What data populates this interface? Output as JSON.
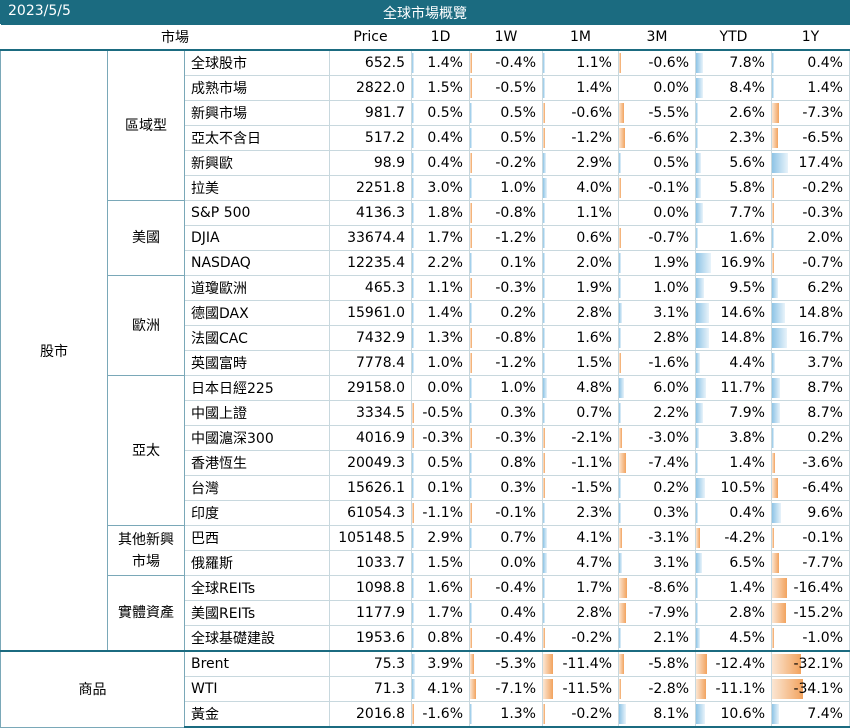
{
  "header": {
    "date": "2023/5/5",
    "title": "全球市場概覽"
  },
  "columns": {
    "market": "市場",
    "price": "Price",
    "periods": [
      "1D",
      "1W",
      "1M",
      "3M",
      "YTD",
      "1Y"
    ]
  },
  "colors": {
    "header_bg": "#1b6b80",
    "positive_bar": "#8ec4e6",
    "negative_bar": "#f2a35e"
  },
  "groups": [
    {
      "category": "股市",
      "subgroups": [
        {
          "name": "區域型",
          "rows": [
            {
              "name": "全球股市",
              "price": "652.5",
              "values": [
                "1.4%",
                "-0.4%",
                "1.1%",
                "-0.6%",
                "7.8%",
                "0.4%"
              ]
            },
            {
              "name": "成熟市場",
              "price": "2822.0",
              "values": [
                "1.5%",
                "-0.5%",
                "1.4%",
                "0.0%",
                "8.4%",
                "1.4%"
              ]
            },
            {
              "name": "新興市場",
              "price": "981.7",
              "values": [
                "0.5%",
                "0.5%",
                "-0.6%",
                "-5.5%",
                "2.6%",
                "-7.3%"
              ]
            },
            {
              "name": "亞太不含日",
              "price": "517.2",
              "values": [
                "0.4%",
                "0.5%",
                "-1.2%",
                "-6.6%",
                "2.3%",
                "-6.5%"
              ]
            },
            {
              "name": "新興歐",
              "price": "98.9",
              "values": [
                "0.4%",
                "-0.2%",
                "2.9%",
                "0.5%",
                "5.6%",
                "17.4%"
              ]
            },
            {
              "name": "拉美",
              "price": "2251.8",
              "values": [
                "3.0%",
                "1.0%",
                "4.0%",
                "-0.1%",
                "5.8%",
                "-0.2%"
              ]
            }
          ]
        },
        {
          "name": "美國",
          "rows": [
            {
              "name": "S&P 500",
              "price": "4136.3",
              "values": [
                "1.8%",
                "-0.8%",
                "1.1%",
                "0.0%",
                "7.7%",
                "-0.3%"
              ]
            },
            {
              "name": "DJIA",
              "price": "33674.4",
              "values": [
                "1.7%",
                "-1.2%",
                "0.6%",
                "-0.7%",
                "1.6%",
                "2.0%"
              ]
            },
            {
              "name": "NASDAQ",
              "price": "12235.4",
              "values": [
                "2.2%",
                "0.1%",
                "2.0%",
                "1.9%",
                "16.9%",
                "-0.7%"
              ]
            }
          ]
        },
        {
          "name": "歐洲",
          "rows": [
            {
              "name": "道瓊歐洲",
              "price": "465.3",
              "values": [
                "1.1%",
                "-0.3%",
                "1.9%",
                "1.0%",
                "9.5%",
                "6.2%"
              ]
            },
            {
              "name": "德國DAX",
              "price": "15961.0",
              "values": [
                "1.4%",
                "0.2%",
                "2.8%",
                "3.1%",
                "14.6%",
                "14.8%"
              ]
            },
            {
              "name": "法國CAC",
              "price": "7432.9",
              "values": [
                "1.3%",
                "-0.8%",
                "1.6%",
                "2.8%",
                "14.8%",
                "16.7%"
              ]
            },
            {
              "name": "英國富時",
              "price": "7778.4",
              "values": [
                "1.0%",
                "-1.2%",
                "1.5%",
                "-1.6%",
                "4.4%",
                "3.7%"
              ]
            }
          ]
        },
        {
          "name": "亞太",
          "rows": [
            {
              "name": "日本日經225",
              "price": "29158.0",
              "values": [
                "0.0%",
                "1.0%",
                "4.8%",
                "6.0%",
                "11.7%",
                "8.7%"
              ]
            },
            {
              "name": "中國上證",
              "price": "3334.5",
              "values": [
                "-0.5%",
                "0.3%",
                "0.7%",
                "2.2%",
                "7.9%",
                "8.7%"
              ]
            },
            {
              "name": "中國滬深300",
              "price": "4016.9",
              "values": [
                "-0.3%",
                "-0.3%",
                "-2.1%",
                "-3.0%",
                "3.8%",
                "0.2%"
              ]
            },
            {
              "name": "香港恆生",
              "price": "20049.3",
              "values": [
                "0.5%",
                "0.8%",
                "-1.1%",
                "-7.4%",
                "1.4%",
                "-3.6%"
              ]
            },
            {
              "name": "台灣",
              "price": "15626.1",
              "values": [
                "0.1%",
                "0.3%",
                "-1.5%",
                "0.2%",
                "10.5%",
                "-6.4%"
              ]
            },
            {
              "name": "印度",
              "price": "61054.3",
              "values": [
                "-1.1%",
                "-0.1%",
                "2.3%",
                "0.3%",
                "0.4%",
                "9.6%"
              ]
            }
          ]
        },
        {
          "name": "其他新興市場",
          "rows": [
            {
              "name": "巴西",
              "price": "105148.5",
              "values": [
                "2.9%",
                "0.7%",
                "4.1%",
                "-3.1%",
                "-4.2%",
                "-0.1%"
              ]
            },
            {
              "name": "俄羅斯",
              "price": "1033.7",
              "values": [
                "1.5%",
                "0.0%",
                "4.7%",
                "3.1%",
                "6.5%",
                "-7.7%"
              ]
            }
          ]
        },
        {
          "name": "實體資產",
          "rows": [
            {
              "name": "全球REITs",
              "price": "1098.8",
              "values": [
                "1.6%",
                "-0.4%",
                "1.7%",
                "-8.6%",
                "1.4%",
                "-16.4%"
              ]
            },
            {
              "name": "美國REITs",
              "price": "1177.9",
              "values": [
                "1.7%",
                "0.4%",
                "2.8%",
                "-7.9%",
                "2.8%",
                "-15.2%"
              ]
            },
            {
              "name": "全球基礎建設",
              "price": "1953.6",
              "values": [
                "0.8%",
                "-0.4%",
                "-0.2%",
                "2.1%",
                "4.5%",
                "-1.0%"
              ]
            }
          ]
        }
      ]
    },
    {
      "category": "商品",
      "subgroups": [
        {
          "name": "",
          "rows": [
            {
              "name": "Brent",
              "price": "75.3",
              "values": [
                "3.9%",
                "-5.3%",
                "-11.4%",
                "-5.8%",
                "-12.4%",
                "-32.1%"
              ]
            },
            {
              "name": "WTI",
              "price": "71.3",
              "values": [
                "4.1%",
                "-7.1%",
                "-11.5%",
                "-2.8%",
                "-11.1%",
                "-34.1%"
              ]
            },
            {
              "name": "黃金",
              "price": "2016.8",
              "values": [
                "-1.6%",
                "1.3%",
                "-0.2%",
                "8.1%",
                "10.6%",
                "7.4%"
              ]
            }
          ]
        }
      ]
    }
  ]
}
